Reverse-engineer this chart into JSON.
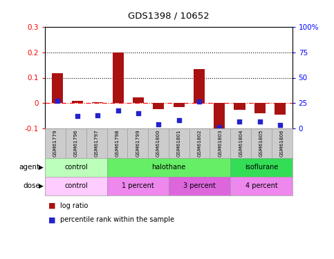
{
  "title": "GDS1398 / 10652",
  "samples": [
    "GSM61779",
    "GSM61796",
    "GSM61797",
    "GSM61798",
    "GSM61799",
    "GSM61800",
    "GSM61801",
    "GSM61802",
    "GSM61803",
    "GSM61804",
    "GSM61805",
    "GSM61806"
  ],
  "log_ratio": [
    0.117,
    0.008,
    0.003,
    0.2,
    0.022,
    -0.025,
    -0.015,
    0.133,
    -0.13,
    -0.028,
    -0.04,
    -0.047
  ],
  "percentile": [
    27.0,
    12.0,
    12.8,
    17.5,
    14.8,
    3.8,
    8.2,
    26.5,
    1.0,
    6.6,
    6.3,
    3.0
  ],
  "bar_color": "#aa1111",
  "dot_color": "#2222cc",
  "ylim_left": [
    -0.1,
    0.3
  ],
  "ylim_right": [
    0,
    100
  ],
  "yticks_left": [
    -0.1,
    0.0,
    0.1,
    0.2,
    0.3
  ],
  "yticks_right": [
    0,
    25,
    50,
    75,
    100
  ],
  "ytick_labels_left": [
    "-0.1",
    "0",
    "0.1",
    "0.2",
    "0.3"
  ],
  "ytick_labels_right": [
    "0",
    "25",
    "50",
    "75",
    "100%"
  ],
  "hlines": [
    0.1,
    0.2
  ],
  "agent_groups": [
    {
      "label": "control",
      "start": 0,
      "end": 3,
      "color": "#bbffbb"
    },
    {
      "label": "halothane",
      "start": 3,
      "end": 9,
      "color": "#66ee66"
    },
    {
      "label": "isoflurane",
      "start": 9,
      "end": 12,
      "color": "#33dd55"
    }
  ],
  "dose_groups": [
    {
      "label": "control",
      "start": 0,
      "end": 3,
      "color": "#ffccff"
    },
    {
      "label": "1 percent",
      "start": 3,
      "end": 6,
      "color": "#ee88ee"
    },
    {
      "label": "3 percent",
      "start": 6,
      "end": 9,
      "color": "#dd66dd"
    },
    {
      "label": "4 percent",
      "start": 9,
      "end": 12,
      "color": "#ee88ee"
    }
  ],
  "legend_bar_label": "log ratio",
  "legend_dot_label": "percentile rank within the sample",
  "agent_label": "agent",
  "dose_label": "dose",
  "background_color": "#ffffff",
  "sample_bg_color": "#cccccc",
  "sample_border_color": "#999999"
}
